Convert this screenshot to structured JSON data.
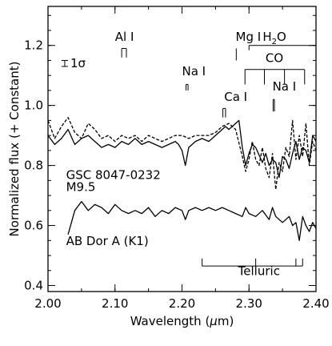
{
  "chart_data": {
    "type": "line",
    "title": "",
    "xlabel": "Wavelength (μm)",
    "xlabel_parts": [
      "Wavelength (",
      "μ",
      "m)"
    ],
    "ylabel": "Normalized flux (+ Constant)",
    "xlim": [
      2.0,
      2.4
    ],
    "ylim": [
      0.38,
      1.33
    ],
    "x_ticks": [
      2.0,
      2.1,
      2.2,
      2.3,
      2.4
    ],
    "x_tick_labels": [
      "2.00",
      "2.10",
      "2.20",
      "2.30",
      "2.40"
    ],
    "y_ticks": [
      0.4,
      0.6,
      0.8,
      1.0,
      1.2
    ],
    "y_tick_labels": [
      "0.4",
      "0.6",
      "0.8",
      "1.0",
      "1.2"
    ],
    "grid": false,
    "series": [
      {
        "name": "GSC 8047-0232 M9.5",
        "style": "solid",
        "x": [
          2.0,
          2.01,
          2.02,
          2.03,
          2.04,
          2.05,
          2.06,
          2.07,
          2.08,
          2.09,
          2.1,
          2.11,
          2.12,
          2.13,
          2.14,
          2.15,
          2.16,
          2.17,
          2.18,
          2.19,
          2.195,
          2.2,
          2.205,
          2.21,
          2.22,
          2.23,
          2.24,
          2.25,
          2.26,
          2.265,
          2.27,
          2.28,
          2.285,
          2.29,
          2.295,
          2.3,
          2.305,
          2.31,
          2.32,
          2.325,
          2.33,
          2.335,
          2.34,
          2.345,
          2.35,
          2.355,
          2.36,
          2.365,
          2.37,
          2.375,
          2.38,
          2.385,
          2.39,
          2.395,
          2.4
        ],
        "y": [
          0.9,
          0.87,
          0.89,
          0.92,
          0.87,
          0.89,
          0.9,
          0.88,
          0.86,
          0.87,
          0.86,
          0.88,
          0.87,
          0.89,
          0.87,
          0.88,
          0.87,
          0.86,
          0.87,
          0.88,
          0.87,
          0.85,
          0.8,
          0.86,
          0.88,
          0.89,
          0.88,
          0.9,
          0.92,
          0.93,
          0.92,
          0.94,
          0.95,
          0.86,
          0.8,
          0.84,
          0.87,
          0.86,
          0.81,
          0.84,
          0.8,
          0.82,
          0.81,
          0.76,
          0.83,
          0.82,
          0.79,
          0.84,
          0.88,
          0.82,
          0.86,
          0.85,
          0.81,
          0.9,
          0.88
        ]
      },
      {
        "name": "",
        "style": "dashed",
        "x": [
          2.0,
          2.01,
          2.02,
          2.03,
          2.04,
          2.05,
          2.06,
          2.07,
          2.08,
          2.09,
          2.1,
          2.11,
          2.12,
          2.13,
          2.14,
          2.15,
          2.16,
          2.17,
          2.18,
          2.19,
          2.2,
          2.21,
          2.22,
          2.23,
          2.24,
          2.25,
          2.26,
          2.27,
          2.28,
          2.29,
          2.295,
          2.3,
          2.305,
          2.31,
          2.315,
          2.32,
          2.325,
          2.33,
          2.335,
          2.34,
          2.345,
          2.35,
          2.355,
          2.36,
          2.365,
          2.37,
          2.375,
          2.38,
          2.385,
          2.39,
          2.395,
          2.4
        ],
        "y": [
          0.95,
          0.89,
          0.93,
          0.96,
          0.91,
          0.89,
          0.94,
          0.92,
          0.89,
          0.9,
          0.88,
          0.9,
          0.89,
          0.9,
          0.88,
          0.9,
          0.89,
          0.88,
          0.89,
          0.9,
          0.9,
          0.89,
          0.9,
          0.9,
          0.9,
          0.91,
          0.93,
          0.94,
          0.92,
          0.83,
          0.78,
          0.82,
          0.88,
          0.82,
          0.8,
          0.86,
          0.79,
          0.76,
          0.84,
          0.72,
          0.81,
          0.78,
          0.86,
          0.83,
          0.95,
          0.82,
          0.9,
          0.83,
          0.94,
          0.8,
          0.88,
          0.85
        ]
      },
      {
        "name": "AB Dor A (K1)",
        "style": "solid",
        "x": [
          2.03,
          2.04,
          2.05,
          2.06,
          2.07,
          2.08,
          2.09,
          2.1,
          2.11,
          2.12,
          2.13,
          2.14,
          2.15,
          2.16,
          2.17,
          2.18,
          2.19,
          2.2,
          2.205,
          2.21,
          2.22,
          2.23,
          2.24,
          2.25,
          2.26,
          2.27,
          2.28,
          2.29,
          2.295,
          2.3,
          2.31,
          2.32,
          2.33,
          2.335,
          2.34,
          2.35,
          2.36,
          2.365,
          2.37,
          2.375,
          2.38,
          2.385,
          2.39,
          2.395,
          2.4
        ],
        "y": [
          0.57,
          0.65,
          0.68,
          0.65,
          0.67,
          0.66,
          0.64,
          0.67,
          0.65,
          0.64,
          0.65,
          0.64,
          0.66,
          0.63,
          0.65,
          0.64,
          0.66,
          0.65,
          0.62,
          0.65,
          0.66,
          0.65,
          0.66,
          0.65,
          0.66,
          0.65,
          0.64,
          0.63,
          0.66,
          0.64,
          0.63,
          0.65,
          0.62,
          0.66,
          0.63,
          0.61,
          0.63,
          0.6,
          0.61,
          0.55,
          0.63,
          0.6,
          0.58,
          0.61,
          0.59
        ]
      }
    ],
    "annotations": {
      "error_bar": {
        "label": "1σ",
        "x": 2.025,
        "y": 1.14,
        "half": 0.01
      },
      "star_labels": [
        {
          "text": "GSC 8047-0232",
          "x": 2.027,
          "y": 0.755
        },
        {
          "text": "M9.5",
          "x": 2.027,
          "y": 0.715
        },
        {
          "text": "AB Dor A (K1)",
          "x": 2.027,
          "y": 0.535
        }
      ],
      "lines": [
        {
          "label": "Al I",
          "label_x": 2.1,
          "label_y": 1.215,
          "marks": [
            2.11,
            2.117
          ],
          "top": 1.19,
          "bottom": 1.16
        },
        {
          "label": "Na I",
          "label_x": 2.2,
          "label_y": 1.1,
          "marks": [
            2.206,
            2.209
          ],
          "top": 1.07,
          "bottom": 1.05
        },
        {
          "label": "Mg I",
          "label_x": 2.28,
          "label_y": 1.215,
          "marks": [
            2.281
          ],
          "top": 1.19,
          "bottom": 1.15
        },
        {
          "label": "Ca I",
          "label_x": 2.263,
          "label_y": 1.015,
          "marks": [
            2.261,
            2.265
          ],
          "top": 0.99,
          "bottom": 0.96
        },
        {
          "label": "Na I",
          "label_x": 2.335,
          "label_y": 1.05,
          "marks": [
            2.336,
            2.338
          ],
          "top": 1.02,
          "bottom": 0.98
        }
      ],
      "co_band": {
        "label": "CO",
        "label_x": 2.338,
        "label_y": 1.145,
        "start": 2.294,
        "end": 2.383,
        "y": 1.12,
        "marks": [
          2.294,
          2.323,
          2.353,
          2.383
        ],
        "bottom": 1.07
      },
      "h2o_band": {
        "label": "H2O",
        "label_x": 2.338,
        "label_y": 1.215,
        "start": 2.3,
        "end": 2.4,
        "y": 1.2
      },
      "telluric": {
        "label": "Telluric",
        "label_x": 2.315,
        "label_y": 0.435,
        "start": 2.23,
        "end": 2.38,
        "y": 0.465,
        "marks": [
          2.23,
          2.31,
          2.37,
          2.38
        ],
        "top": 0.49
      }
    }
  }
}
